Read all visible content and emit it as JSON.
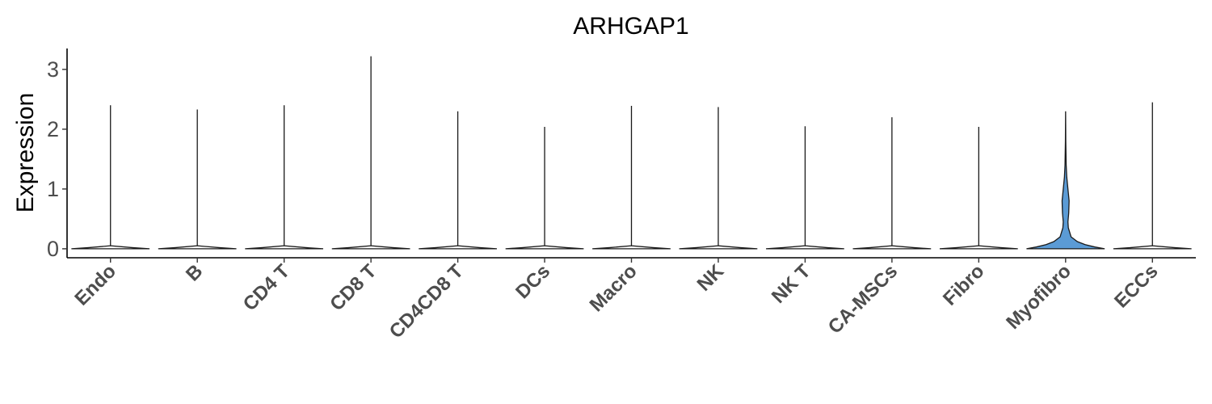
{
  "chart_data": {
    "type": "violin",
    "title": "ARHGAP1",
    "xlabel": "",
    "ylabel": "Expression",
    "ylim": [
      -0.15,
      3.35
    ],
    "yticks": [
      0,
      1,
      2,
      3
    ],
    "grid": false,
    "legend": "none",
    "categories": [
      "Endo",
      "B",
      "CD4 T",
      "CD8 T",
      "CD4CD8 T",
      "DCs",
      "Macro",
      "NK",
      "NK T",
      "CA-MSCs",
      "Fibro",
      "Myofibro",
      "ECCs"
    ],
    "max_values": [
      2.4,
      2.33,
      2.4,
      3.22,
      2.3,
      2.04,
      2.39,
      2.37,
      2.05,
      2.2,
      2.04,
      2.3,
      2.45
    ],
    "fill_colors": [
      "#ffffff",
      "#ffffff",
      "#ffffff",
      "#ffffff",
      "#ffffff",
      "#ffffff",
      "#ffffff",
      "#ffffff",
      "#ffffff",
      "#ffffff",
      "#ffffff",
      "#5b9bd5",
      "#ffffff"
    ],
    "density_profiles": {
      "default": [
        [
          0,
          1.0
        ],
        [
          0.02,
          0.55
        ],
        [
          0.05,
          0.0
        ]
      ],
      "Myofibro": [
        [
          0,
          1.0
        ],
        [
          0.03,
          0.75
        ],
        [
          0.07,
          0.5
        ],
        [
          0.12,
          0.3
        ],
        [
          0.2,
          0.14
        ],
        [
          0.35,
          0.07
        ],
        [
          0.45,
          0.06
        ],
        [
          0.6,
          0.08
        ],
        [
          0.8,
          0.09
        ],
        [
          1.0,
          0.06
        ],
        [
          1.2,
          0.03
        ],
        [
          1.4,
          0.015
        ],
        [
          1.8,
          0.005
        ],
        [
          2.3,
          0.0
        ]
      ]
    }
  }
}
